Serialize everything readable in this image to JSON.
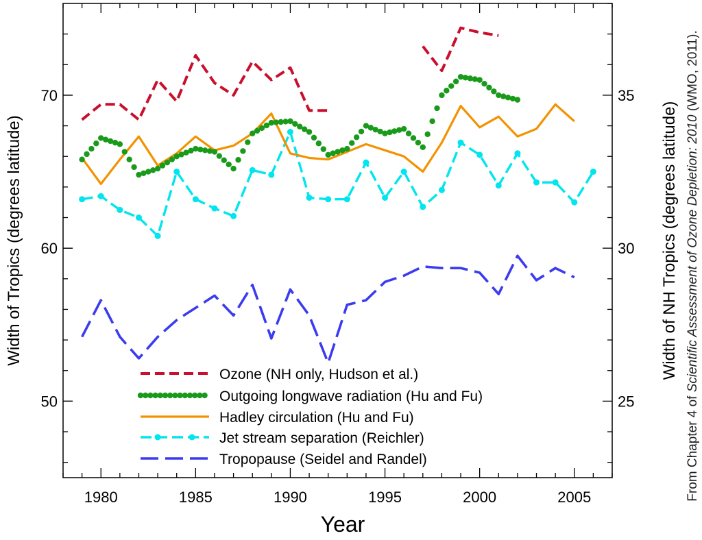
{
  "chart_data": {
    "type": "line",
    "xlabel": "Year",
    "ylabel": "Width of Tropics (degrees latitude)",
    "ylabel_right": "Width of NH Tropics (degrees latitude)",
    "xlim": [
      1978,
      2007
    ],
    "ylim": [
      45,
      76
    ],
    "ylim_right": [
      22.5,
      38
    ],
    "x_ticks": [
      1980,
      1985,
      1990,
      1995,
      2000,
      2005
    ],
    "y_ticks": [
      50,
      60,
      70
    ],
    "y_ticks_right": [
      25,
      30,
      35
    ],
    "grid": false,
    "legend_position": "bottom-center",
    "credit": {
      "prefix": "From Chapter 4 of ",
      "title": "Scientific Assessment of Ozone Depletion: 2010",
      "suffix": " (WMO, 2011)."
    },
    "series": [
      {
        "name": "Ozone (NH only, Hudson et al.)",
        "color": "#c8102e",
        "style": "dash",
        "axis": "right",
        "segments": [
          {
            "x": [
              1979,
              1980,
              1981,
              1982,
              1983,
              1984,
              1985,
              1986,
              1987,
              1988,
              1989,
              1990,
              1991,
              1992
            ],
            "y": [
              34.2,
              34.7,
              34.7,
              34.2,
              35.5,
              34.8,
              36.3,
              35.4,
              35.0,
              36.1,
              35.5,
              35.9,
              34.5,
              34.5
            ]
          },
          {
            "x": [
              1997,
              1998,
              1999,
              2000,
              2001
            ],
            "y": [
              36.6,
              35.8,
              37.2,
              37.05,
              36.95
            ]
          }
        ]
      },
      {
        "name": "Outgoing longwave radiation (Hu and Fu)",
        "color": "#1a9a1a",
        "style": "dots",
        "axis": "left",
        "segments": [
          {
            "x": [
              1979,
              1980,
              1981,
              1982,
              1983,
              1984,
              1985,
              1986,
              1987,
              1988,
              1989,
              1990,
              1991,
              1992,
              1993,
              1994,
              1995,
              1996,
              1997,
              1998,
              1999,
              2000,
              2001,
              2002
            ],
            "y": [
              65.8,
              67.2,
              66.8,
              64.8,
              65.2,
              66.0,
              66.5,
              66.3,
              65.2,
              67.5,
              68.2,
              68.3,
              67.6,
              66.1,
              66.5,
              68.0,
              67.5,
              67.8,
              66.6,
              70.0,
              71.2,
              71.0,
              70.0,
              69.7
            ]
          }
        ]
      },
      {
        "name": "Hadley circulation (Hu and Fu)",
        "color": "#f39200",
        "style": "solid",
        "axis": "left",
        "segments": [
          {
            "x": [
              1979,
              1980,
              1981,
              1982,
              1983,
              1984,
              1985,
              1986,
              1987,
              1988,
              1989,
              1990,
              1991,
              1992,
              1993,
              1994,
              1995,
              1996,
              1997,
              1998,
              1999,
              2000,
              2001,
              2002,
              2003,
              2004,
              2005
            ],
            "y": [
              65.9,
              64.2,
              65.8,
              67.3,
              65.4,
              66.2,
              67.3,
              66.4,
              66.7,
              67.5,
              68.8,
              66.2,
              65.9,
              65.8,
              66.3,
              66.8,
              66.4,
              66.0,
              65.0,
              66.9,
              69.3,
              67.9,
              68.6,
              67.3,
              67.8,
              69.4,
              68.3
            ]
          }
        ]
      },
      {
        "name": "Jet stream separation (Reichler)",
        "color": "#00e5ee",
        "style": "dashdot",
        "axis": "left",
        "segments": [
          {
            "x": [
              1979,
              1980,
              1981,
              1982,
              1983,
              1984,
              1985,
              1986,
              1987,
              1988,
              1989,
              1990,
              1991,
              1992,
              1993,
              1994,
              1995,
              1996,
              1997,
              1998,
              1999,
              2000,
              2001,
              2002,
              2003,
              2004,
              2005,
              2006
            ],
            "y": [
              63.2,
              63.4,
              62.5,
              62.0,
              60.8,
              65.0,
              63.2,
              62.6,
              62.1,
              65.1,
              64.8,
              67.6,
              63.3,
              63.2,
              63.2,
              65.6,
              63.3,
              65.0,
              62.7,
              63.8,
              66.9,
              66.1,
              64.1,
              66.2,
              64.3,
              64.3,
              63.0,
              65.0
            ]
          }
        ]
      },
      {
        "name": "Tropopause (Seidel and Randel)",
        "color": "#3b3bf0",
        "style": "longdash",
        "axis": "left",
        "segments": [
          {
            "x": [
              1979,
              1980,
              1981,
              1982,
              1983,
              1984,
              1985,
              1986,
              1987,
              1988,
              1989,
              1990,
              1991,
              1992,
              1993,
              1994,
              1995,
              1996,
              1997,
              1998,
              1999,
              2000,
              2001,
              2002,
              2003,
              2004,
              2005
            ],
            "y": [
              54.2,
              56.6,
              54.2,
              52.8,
              54.2,
              55.3,
              56.1,
              56.9,
              55.6,
              57.6,
              54.1,
              57.3,
              55.6,
              52.5,
              56.3,
              56.6,
              57.8,
              58.2,
              58.8,
              58.7,
              58.7,
              58.4,
              57.0,
              59.5,
              57.9,
              58.7,
              58.1
            ]
          }
        ]
      }
    ]
  }
}
